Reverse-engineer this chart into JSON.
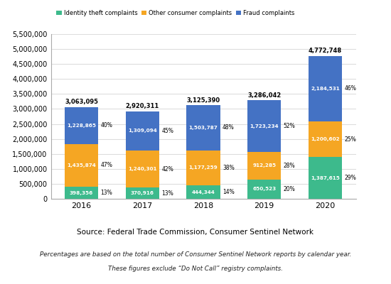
{
  "years": [
    "2016",
    "2017",
    "2018",
    "2019",
    "2020"
  ],
  "identity_theft": [
    398356,
    370916,
    444344,
    650523,
    1387615
  ],
  "other_consumer": [
    1435874,
    1240301,
    1177259,
    912285,
    1200602
  ],
  "fraud": [
    1228865,
    1309094,
    1503787,
    1723234,
    2184531
  ],
  "totals": [
    3063095,
    2920311,
    3125390,
    3286042,
    4772748
  ],
  "identity_pct": [
    "13%",
    "13%",
    "14%",
    "20%",
    "29%"
  ],
  "other_pct": [
    "47%",
    "42%",
    "38%",
    "28%",
    "25%"
  ],
  "fraud_pct": [
    "40%",
    "45%",
    "48%",
    "52%",
    "46%"
  ],
  "identity_color": "#3dba8c",
  "other_color": "#f5a623",
  "fraud_color": "#4472c4",
  "bar_width": 0.55,
  "ylim": [
    0,
    5500000
  ],
  "yticks": [
    0,
    500000,
    1000000,
    1500000,
    2000000,
    2500000,
    3000000,
    3500000,
    4000000,
    4500000,
    5000000,
    5500000
  ],
  "source_text": "Source: Federal Trade Commission, Consumer Sentinel Network",
  "footnote_line1": "Percentages are based on the total number of Consumer Sentinel Network reports by calendar year.",
  "footnote_line2": "These figures exclude “Do Not Call” registry complaints.",
  "legend_labels": [
    "Identity theft complaints",
    "Other consumer complaints",
    "Fraud complaints"
  ]
}
